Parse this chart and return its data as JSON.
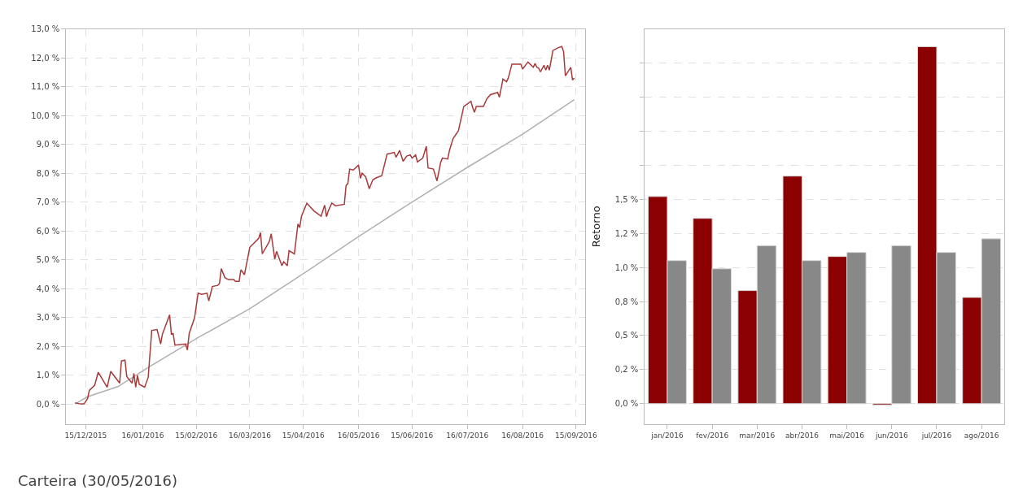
{
  "chart_data": [
    {
      "type": "line",
      "grid": true,
      "line_style": "solid",
      "xlim": [
        "2015-12-04",
        "2016-09-20"
      ],
      "ylim": [
        -0.7,
        13
      ],
      "xticks": [
        {
          "value": "2015-12-15",
          "label": "15/12/2015"
        },
        {
          "value": "2016-01-16",
          "label": "16/01/2016"
        },
        {
          "value": "2016-02-15",
          "label": "15/02/2016"
        },
        {
          "value": "2016-03-16",
          "label": "16/03/2016"
        },
        {
          "value": "2016-04-15",
          "label": "15/04/2016"
        },
        {
          "value": "2016-05-16",
          "label": "16/05/2016"
        },
        {
          "value": "2016-06-15",
          "label": "15/06/2016"
        },
        {
          "value": "2016-07-16",
          "label": "16/07/2016"
        },
        {
          "value": "2016-08-16",
          "label": "16/08/2016"
        },
        {
          "value": "2016-09-15",
          "label": "15/09/2016"
        }
      ],
      "yticks": [
        {
          "value": 0,
          "label": "0,0 %"
        },
        {
          "value": 1,
          "label": "1,0 %"
        },
        {
          "value": 2,
          "label": "2,0 %"
        },
        {
          "value": 3,
          "label": "3,0 %"
        },
        {
          "value": 4,
          "label": "4,0 %"
        },
        {
          "value": 5,
          "label": "5,0 %"
        },
        {
          "value": 6,
          "label": "6,0 %"
        },
        {
          "value": 7,
          "label": "7,0 %"
        },
        {
          "value": 8,
          "label": "8,0 %"
        },
        {
          "value": 9,
          "label": "9,0 %"
        },
        {
          "value": 10,
          "label": "10,0 %"
        },
        {
          "value": 11,
          "label": "11,0 %"
        },
        {
          "value": 12,
          "label": "12,0 %"
        },
        {
          "value": 13,
          "label": "13,0 %"
        }
      ],
      "annotations": [
        "Carteira (30/05/2016)"
      ],
      "series": [
        {
          "color": "#b0b0b0",
          "x": [
            "2015-12-09",
            "2015-12-16",
            "2016-01-02",
            "2016-01-20",
            "2016-02-16",
            "2016-03-16",
            "2016-04-17",
            "2016-05-16",
            "2016-06-15",
            "2016-07-16",
            "2016-08-16",
            "2016-09-14"
          ],
          "values": [
            0.0,
            0.25,
            0.6,
            1.3,
            2.3,
            3.3,
            4.6,
            5.8,
            7.0,
            8.2,
            9.35,
            10.55
          ]
        },
        {
          "color": "#a83a3a",
          "x": [
            "2015-12-09",
            "2015-12-12",
            "2015-12-14",
            "2015-12-16",
            "2015-12-17",
            "2015-12-20",
            "2015-12-22",
            "2015-12-27",
            "2015-12-29",
            "2016-01-03",
            "2016-01-04",
            "2016-01-06",
            "2016-01-07",
            "2016-01-10",
            "2016-01-11",
            "2016-01-12",
            "2016-01-13",
            "2016-01-14",
            "2016-01-17",
            "2016-01-19",
            "2016-01-21",
            "2016-01-24",
            "2016-01-26",
            "2016-01-27",
            "2016-01-31",
            "2016-02-01",
            "2016-02-02",
            "2016-02-03",
            "2016-02-09",
            "2016-02-10",
            "2016-02-11",
            "2016-02-14",
            "2016-02-16",
            "2016-02-18",
            "2016-02-21",
            "2016-02-22",
            "2016-02-24",
            "2016-02-27",
            "2016-02-28",
            "2016-02-29",
            "2016-03-02",
            "2016-03-04",
            "2016-03-07",
            "2016-03-08",
            "2016-03-10",
            "2016-03-11",
            "2016-03-13",
            "2016-03-16",
            "2016-03-21",
            "2016-03-22",
            "2016-03-23",
            "2016-03-27",
            "2016-03-28",
            "2016-03-30",
            "2016-03-31",
            "2016-04-03",
            "2016-04-04",
            "2016-04-06",
            "2016-04-07",
            "2016-04-10",
            "2016-04-12",
            "2016-04-13",
            "2016-04-14",
            "2016-04-17",
            "2016-04-21",
            "2016-04-25",
            "2016-04-27",
            "2016-04-28",
            "2016-04-29",
            "2016-05-01",
            "2016-05-03",
            "2016-05-08",
            "2016-05-09",
            "2016-05-10",
            "2016-05-11",
            "2016-05-13",
            "2016-05-16",
            "2016-05-17",
            "2016-05-18",
            "2016-05-20",
            "2016-05-22",
            "2016-05-24",
            "2016-05-26",
            "2016-05-29",
            "2016-06-01",
            "2016-06-05",
            "2016-06-06",
            "2016-06-08",
            "2016-06-10",
            "2016-06-12",
            "2016-06-14",
            "2016-06-15",
            "2016-06-17",
            "2016-06-18",
            "2016-06-21",
            "2016-06-23",
            "2016-06-24",
            "2016-06-27",
            "2016-06-29",
            "2016-07-01",
            "2016-07-02",
            "2016-07-05",
            "2016-07-06",
            "2016-07-08",
            "2016-07-11",
            "2016-07-14",
            "2016-07-18",
            "2016-07-19",
            "2016-07-20",
            "2016-07-21",
            "2016-07-25",
            "2016-07-27",
            "2016-07-29",
            "2016-08-02",
            "2016-08-03",
            "2016-08-05",
            "2016-08-07",
            "2016-08-08",
            "2016-08-10",
            "2016-08-15",
            "2016-08-16",
            "2016-08-19",
            "2016-08-22",
            "2016-08-23",
            "2016-08-24",
            "2016-08-25",
            "2016-08-26",
            "2016-08-28",
            "2016-08-29",
            "2016-08-30",
            "2016-08-31",
            "2016-09-02",
            "2016-09-05",
            "2016-09-07",
            "2016-09-08",
            "2016-09-09",
            "2016-09-12",
            "2016-09-13",
            "2016-09-14"
          ],
          "values": [
            0.04,
            0.0,
            0.0,
            0.18,
            0.47,
            0.65,
            1.1,
            0.58,
            1.13,
            0.72,
            1.49,
            1.52,
            0.95,
            0.72,
            1.06,
            0.58,
            0.99,
            0.68,
            0.58,
            0.92,
            2.55,
            2.58,
            2.08,
            2.42,
            3.09,
            2.42,
            2.44,
            2.04,
            2.08,
            1.87,
            2.44,
            2.98,
            3.84,
            3.8,
            3.84,
            3.57,
            4.07,
            4.11,
            4.18,
            4.69,
            4.38,
            4.31,
            4.31,
            4.25,
            4.25,
            4.65,
            4.48,
            5.43,
            5.74,
            5.94,
            5.2,
            5.64,
            5.9,
            5.02,
            5.29,
            4.79,
            4.93,
            4.79,
            5.31,
            5.2,
            6.24,
            6.11,
            6.51,
            6.96,
            6.69,
            6.51,
            6.89,
            6.49,
            6.69,
            6.96,
            6.87,
            6.92,
            7.57,
            7.64,
            8.14,
            8.11,
            8.28,
            7.82,
            8.0,
            7.87,
            7.46,
            7.77,
            7.84,
            7.91,
            8.66,
            8.72,
            8.55,
            8.79,
            8.41,
            8.59,
            8.63,
            8.52,
            8.63,
            8.39,
            8.52,
            8.93,
            8.18,
            8.14,
            7.73,
            8.36,
            8.52,
            8.49,
            8.79,
            9.2,
            9.47,
            10.31,
            10.49,
            10.28,
            10.11,
            10.31,
            10.31,
            10.58,
            10.72,
            10.8,
            10.63,
            11.26,
            11.17,
            11.3,
            11.78,
            11.78,
            11.61,
            11.85,
            11.67,
            11.8,
            11.67,
            11.64,
            11.51,
            11.74,
            11.57,
            11.74,
            11.57,
            12.25,
            12.35,
            12.39,
            12.21,
            11.37,
            11.67,
            11.23,
            11.3
          ]
        }
      ]
    },
    {
      "type": "bar",
      "grid": "y",
      "ylabel": "Retorno",
      "categories": [
        "jan/2016",
        "fev/2016",
        "mar/2016",
        "abr/2016",
        "mai/2016",
        "jun/2016",
        "jul/2016",
        "ago/2016"
      ],
      "ylim": [
        -0.15,
        2.75
      ],
      "yticks": [
        {
          "value": 0,
          "label": "0,0 %"
        },
        {
          "value": 0.25,
          "label": "0,2 %"
        },
        {
          "value": 0.5,
          "label": "0,5 %"
        },
        {
          "value": 0.75,
          "label": "0,8 %"
        },
        {
          "value": 1.0,
          "label": "1,0 %"
        },
        {
          "value": 1.25,
          "label": "1,2 %"
        },
        {
          "value": 1.5,
          "label": "1,5 %"
        },
        {
          "value": 1.75,
          "label": null
        },
        {
          "value": 2.0,
          "label": null
        },
        {
          "value": 2.25,
          "label": null
        },
        {
          "value": 2.5,
          "label": null
        }
      ],
      "series": [
        {
          "color": "#8b0000",
          "values": [
            1.52,
            1.36,
            0.83,
            1.67,
            1.08,
            -0.01,
            2.62,
            0.78
          ]
        },
        {
          "color": "#888888",
          "values": [
            1.05,
            0.99,
            1.16,
            1.05,
            1.11,
            1.16,
            1.11,
            1.21
          ]
        }
      ]
    }
  ]
}
